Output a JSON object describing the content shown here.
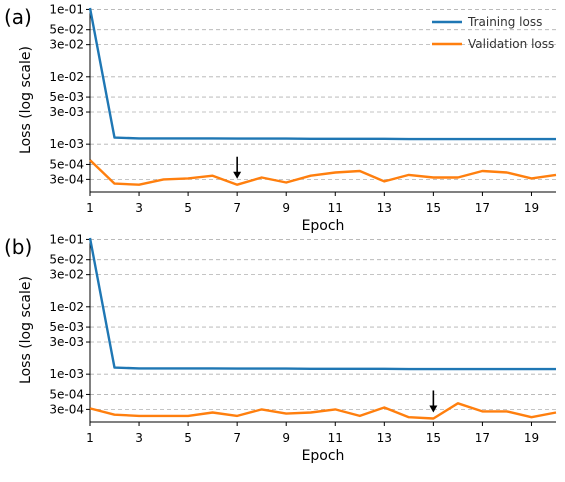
{
  "chart_data": [
    {
      "type": "line",
      "panel_label": "(a)",
      "xlabel": "Epoch",
      "ylabel": "Loss (log scale)",
      "y_scale": "log",
      "x": [
        1,
        2,
        3,
        4,
        5,
        6,
        7,
        8,
        9,
        10,
        11,
        12,
        13,
        14,
        15,
        16,
        17,
        18,
        19,
        20
      ],
      "x_ticks": [
        1,
        3,
        5,
        7,
        9,
        11,
        13,
        15,
        17,
        19
      ],
      "y_ticks": [
        {
          "value": 0.1,
          "label": "1e-01"
        },
        {
          "value": 0.05,
          "label": "5e-02"
        },
        {
          "value": 0.03,
          "label": "3e-02"
        },
        {
          "value": 0.01,
          "label": "1e-02"
        },
        {
          "value": 0.005,
          "label": "5e-03"
        },
        {
          "value": 0.003,
          "label": "3e-03"
        },
        {
          "value": 0.001,
          "label": "1e-03"
        },
        {
          "value": 0.0005,
          "label": "5e-04"
        },
        {
          "value": 0.0003,
          "label": "3e-04"
        }
      ],
      "grid": "horizontal dashed",
      "legend_position": "top-right",
      "series": [
        {
          "name": "Training loss",
          "color": "#1f77b4",
          "values": [
            0.105,
            0.00125,
            0.00122,
            0.00122,
            0.00122,
            0.00122,
            0.00121,
            0.00121,
            0.00121,
            0.0012,
            0.0012,
            0.0012,
            0.0012,
            0.00119,
            0.00119,
            0.00119,
            0.00119,
            0.00119,
            0.00119,
            0.00119
          ]
        },
        {
          "name": "Validation loss",
          "color": "#ff7f0e",
          "values": [
            0.00058,
            0.00026,
            0.00025,
            0.0003,
            0.00031,
            0.00034,
            0.00025,
            0.00032,
            0.00027,
            0.00034,
            0.00038,
            0.0004,
            0.00028,
            0.00035,
            0.00032,
            0.00032,
            0.0004,
            0.00038,
            0.00031,
            0.00035
          ]
        }
      ],
      "annotation": {
        "type": "arrow",
        "x": 7
      }
    },
    {
      "type": "line",
      "panel_label": "(b)",
      "xlabel": "Epoch",
      "ylabel": "Loss (log scale)",
      "y_scale": "log",
      "x": [
        1,
        2,
        3,
        4,
        5,
        6,
        7,
        8,
        9,
        10,
        11,
        12,
        13,
        14,
        15,
        16,
        17,
        18,
        19,
        20
      ],
      "x_ticks": [
        1,
        3,
        5,
        7,
        9,
        11,
        13,
        15,
        17,
        19
      ],
      "y_ticks": [
        {
          "value": 0.1,
          "label": "1e-01"
        },
        {
          "value": 0.05,
          "label": "5e-02"
        },
        {
          "value": 0.03,
          "label": "3e-02"
        },
        {
          "value": 0.01,
          "label": "1e-02"
        },
        {
          "value": 0.005,
          "label": "5e-03"
        },
        {
          "value": 0.003,
          "label": "3e-03"
        },
        {
          "value": 0.001,
          "label": "1e-03"
        },
        {
          "value": 0.0005,
          "label": "5e-04"
        },
        {
          "value": 0.0003,
          "label": "3e-04"
        }
      ],
      "grid": "horizontal dashed",
      "series": [
        {
          "name": "Training loss",
          "color": "#1f77b4",
          "values": [
            0.105,
            0.00125,
            0.00122,
            0.00122,
            0.00122,
            0.00122,
            0.00121,
            0.00121,
            0.00121,
            0.0012,
            0.0012,
            0.0012,
            0.0012,
            0.00119,
            0.00119,
            0.00119,
            0.00119,
            0.00119,
            0.00119,
            0.00119
          ]
        },
        {
          "name": "Validation loss",
          "color": "#ff7f0e",
          "values": [
            0.00031,
            0.00025,
            0.00024,
            0.00024,
            0.00024,
            0.00027,
            0.00024,
            0.0003,
            0.00026,
            0.00027,
            0.0003,
            0.00024,
            0.00032,
            0.00023,
            0.00022,
            0.00037,
            0.00028,
            0.00028,
            0.00023,
            0.00027
          ]
        }
      ],
      "annotation": {
        "type": "arrow",
        "x": 15
      }
    }
  ]
}
